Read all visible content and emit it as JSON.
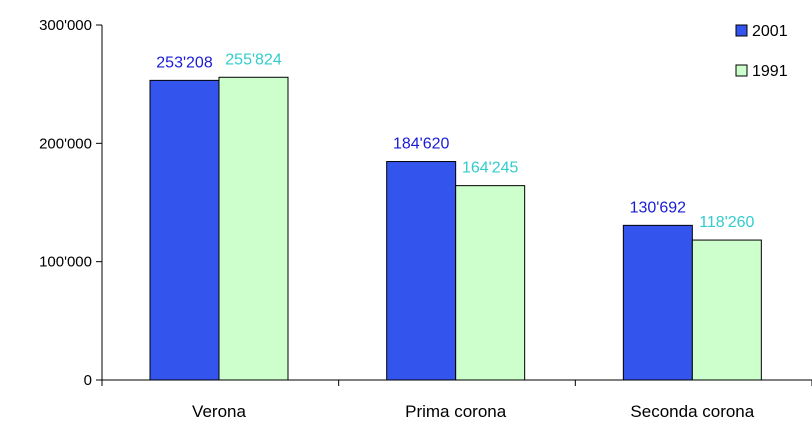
{
  "chart_data": {
    "type": "bar",
    "categories": [
      "Verona",
      "Prima corona",
      "Seconda corona"
    ],
    "series": [
      {
        "name": "2001",
        "values": [
          253208,
          184620,
          130692
        ],
        "labels": [
          "253'208",
          "184'620",
          "130'692"
        ],
        "color": "#3355ee",
        "label_color": "#1a1ad6"
      },
      {
        "name": "1991",
        "values": [
          255824,
          164245,
          118260
        ],
        "labels": [
          "255'824",
          "164'245",
          "118'260"
        ],
        "color": "#ccffcc",
        "label_color": "#33cccc"
      }
    ],
    "yticks": [
      0,
      100000,
      200000,
      300000
    ],
    "ytick_labels": [
      "0",
      "100'000",
      "200'000",
      "300'000"
    ],
    "ylim": [
      0,
      300000
    ],
    "title": "",
    "xlabel": "",
    "ylabel": "",
    "grid": false,
    "legend_position": "top-right"
  }
}
